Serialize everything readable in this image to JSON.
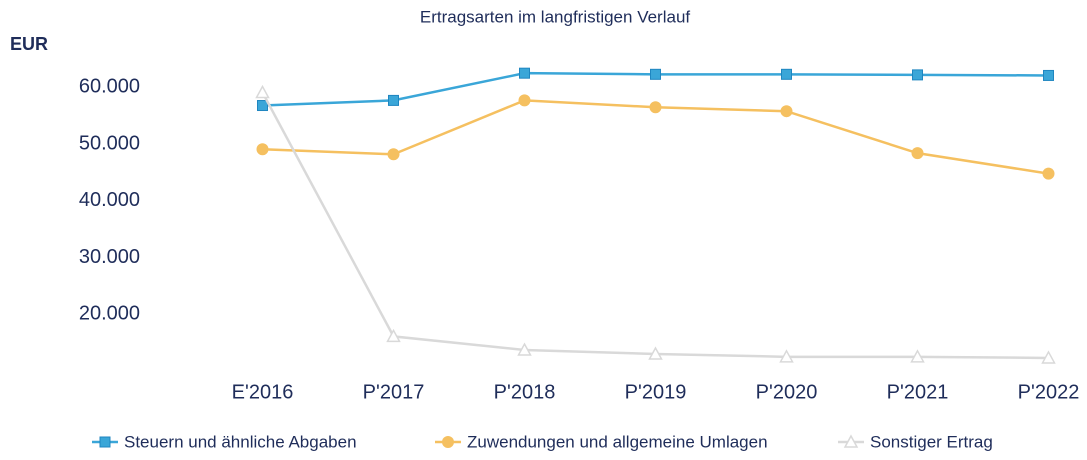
{
  "chart_data": {
    "type": "line",
    "title": "Ertragsarten im langfristigen Verlauf",
    "y_label": "EUR",
    "categories": [
      "E'2016",
      "P'2017",
      "P'2018",
      "P'2019",
      "P'2020",
      "P'2021",
      "P'2022"
    ],
    "series": [
      {
        "name": "Steuern und ähnliche Abgaben",
        "color": "#3aa6d8",
        "marker": "square",
        "values": [
          56800,
          57700,
          62500,
          62300,
          62300,
          62200,
          62100
        ]
      },
      {
        "name": "Zuwendungen und allgemeine Umlagen",
        "color": "#f5c060",
        "marker": "circle",
        "values": [
          49100,
          48200,
          57700,
          56500,
          55800,
          48400,
          44800
        ]
      },
      {
        "name": "Sonstiger Ertrag",
        "color": "#d9d9d9",
        "marker": "triangle",
        "values": [
          59100,
          16100,
          13700,
          13000,
          12500,
          12500,
          12300
        ]
      }
    ],
    "ylim": [
      10000,
      65000
    ],
    "yticks": [
      {
        "value": 20000,
        "label": "20.000"
      },
      {
        "value": 30000,
        "label": "30.000"
      },
      {
        "value": 40000,
        "label": "40.000"
      },
      {
        "value": 50000,
        "label": "50.000"
      },
      {
        "value": 60000,
        "label": "60.000"
      }
    ],
    "grid": false,
    "legend": "bottom"
  }
}
